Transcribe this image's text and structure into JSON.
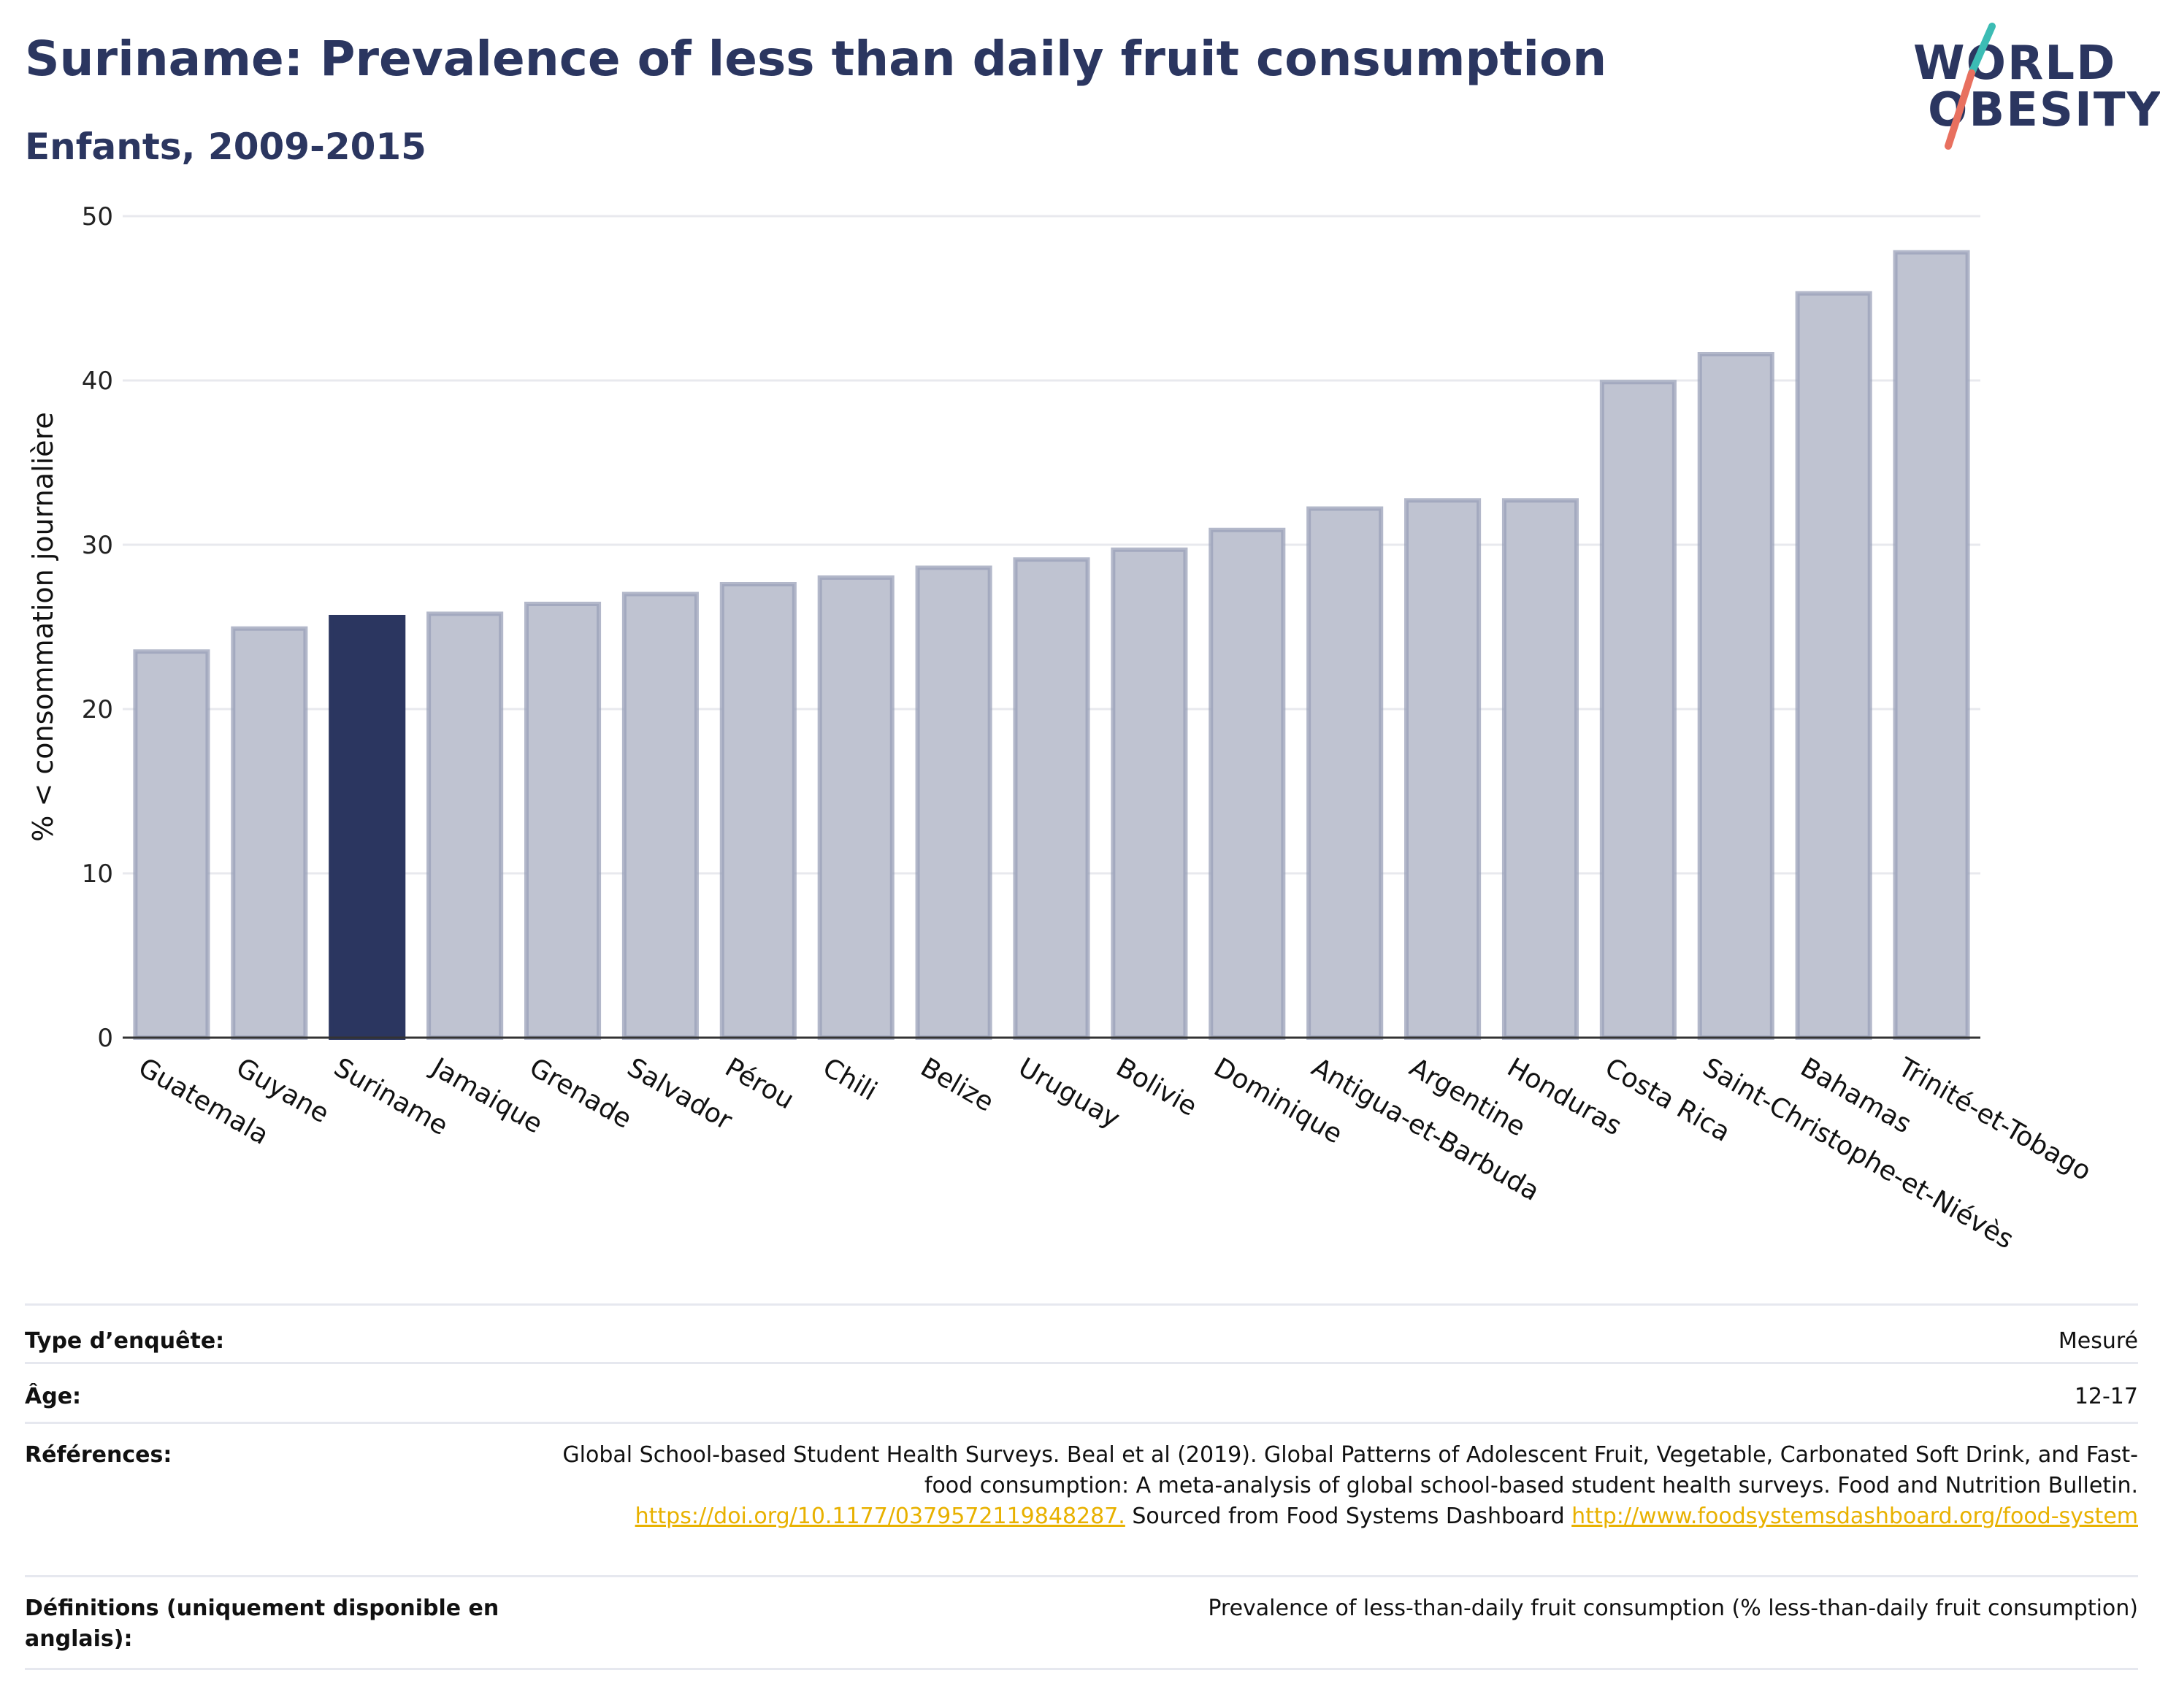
{
  "title": "Suriname: Prevalence of less than daily fruit consumption",
  "subtitle": "Enfants, 2009-2015",
  "logo": {
    "line1": "WORLD",
    "line2": "OBESITY"
  },
  "colors": {
    "highlight": "#2b3660",
    "bar_fill": "#bfc3d1",
    "bar_stroke": "#9aa0b8",
    "grid": "#e8e9ee",
    "logo_teal": "#3cbcb4",
    "logo_coral": "#e8705f",
    "link": "#e8b100"
  },
  "chart_data": {
    "type": "bar",
    "ylabel": "% < consommation journalière",
    "ylim": [
      0,
      50
    ],
    "yticks": [
      0,
      10,
      20,
      30,
      40,
      50
    ],
    "grid": true,
    "highlight": "Suriname",
    "categories": [
      "Guatemala",
      "Guyane",
      "Suriname",
      "Jamaique",
      "Grenade",
      "Salvador",
      "Pérou",
      "Chili",
      "Belize",
      "Uruguay",
      "Bolivie",
      "Dominique",
      "Antigua-et-Barbuda",
      "Argentine",
      "Honduras",
      "Costa Rica",
      "Saint-Christophe-et-Niévès",
      "Bahamas",
      "Trinité-et-Tobago"
    ],
    "values": [
      23.5,
      24.9,
      25.6,
      25.8,
      26.4,
      27.0,
      27.6,
      28.0,
      28.6,
      29.1,
      29.7,
      30.9,
      32.2,
      32.7,
      32.7,
      39.9,
      41.6,
      45.3,
      47.8
    ]
  },
  "info": {
    "survey_type_label": "Type d’enquête:",
    "survey_type_value": "Mesuré",
    "age_label": "Âge:",
    "age_value": "12-17",
    "references_label": "Références:",
    "references_text1": "Global School-based Student Health Surveys. Beal et al (2019). Global Patterns of Adolescent Fruit, Vegetable, Carbonated Soft Drink, and Fast-food consumption: A meta-analysis of global school-based student health surveys. Food and Nutrition Bulletin.",
    "references_link1": "https://doi.org/10.1177/0379572119848287.",
    "references_text2": " Sourced from Food Systems Dashboard ",
    "references_link2": "http://www.foodsystemsdashboard.org/food-system",
    "definitions_label": "Définitions (uniquement disponible en anglais):",
    "definitions_value": "Prevalence of less-than-daily fruit consumption (% less-than-daily fruit consumption)"
  }
}
